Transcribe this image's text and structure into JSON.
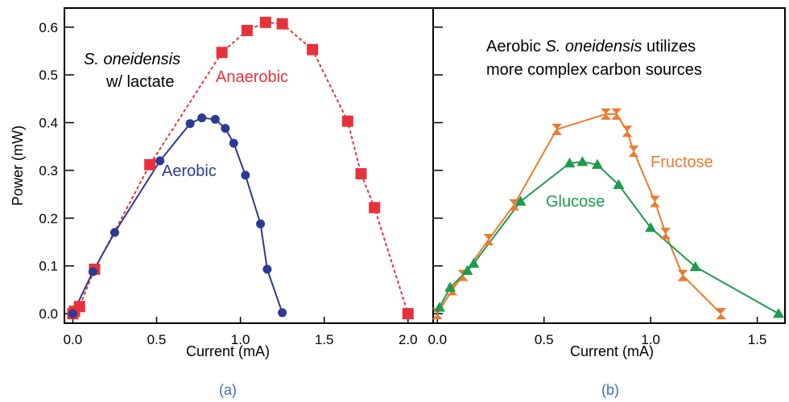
{
  "colors": {
    "anaerobic": "#e8323a",
    "aerobic": "#2c3a92",
    "fructose": "#ec7a2e",
    "glucose": "#1e9a4c",
    "caption": "#3a6fb0"
  },
  "chart_data": [
    {
      "type": "line",
      "caption": "(a)",
      "xlabel": "Current (mA)",
      "ylabel": "Power (mW)",
      "xlim": [
        -0.05,
        2.15
      ],
      "ylim": [
        -0.02,
        0.64
      ],
      "xticks": [
        0.0,
        0.5,
        1.0,
        1.5,
        2.0
      ],
      "xtick_labels": [
        "0.0",
        "0.5",
        "1.0",
        "1.5",
        "2.0"
      ],
      "yticks": [
        0.0,
        0.1,
        0.2,
        0.3,
        0.4,
        0.5,
        0.6
      ],
      "ytick_labels": [
        "0.0",
        "0.1",
        "0.2",
        "0.3",
        "0.4",
        "0.5",
        "0.6"
      ],
      "note_line1_italic": "S. oneidensis",
      "note_line2": "w/ lactate",
      "series": [
        {
          "name": "Anaerobic",
          "marker": "square",
          "line": "dashed",
          "color": "#e8323a",
          "x": [
            0.0,
            0.01,
            0.04,
            0.13,
            0.46,
            0.89,
            1.04,
            1.15,
            1.25,
            1.43,
            1.64,
            1.72,
            1.8,
            2.0
          ],
          "y": [
            0.0,
            0.005,
            0.015,
            0.093,
            0.312,
            0.547,
            0.593,
            0.61,
            0.607,
            0.553,
            0.403,
            0.293,
            0.222,
            0.0
          ]
        },
        {
          "name": "Aerobic",
          "marker": "circle",
          "line": "solid",
          "color": "#2c3a92",
          "x": [
            0.0,
            0.12,
            0.25,
            0.52,
            0.7,
            0.77,
            0.85,
            0.91,
            0.96,
            1.03,
            1.12,
            1.16,
            1.25
          ],
          "y": [
            0.0,
            0.088,
            0.17,
            0.32,
            0.398,
            0.41,
            0.407,
            0.388,
            0.357,
            0.29,
            0.188,
            0.093,
            0.002
          ]
        }
      ]
    },
    {
      "type": "line",
      "caption": "(b)",
      "xlabel": "Current (mA)",
      "ylabel": "",
      "xlim": [
        -0.02,
        1.63
      ],
      "ylim": [
        -0.02,
        0.64
      ],
      "xticks": [
        0.0,
        0.5,
        1.0,
        1.5
      ],
      "xtick_labels": [
        "0.0",
        "0.5",
        "1.0",
        "1.5"
      ],
      "yticks": [
        0.0,
        0.1,
        0.2,
        0.3,
        0.4,
        0.5,
        0.6
      ],
      "ytick_labels": [],
      "note_line1_pre": "Aerobic ",
      "note_line1_italic": "S. oneidensis",
      "note_line1_post": " utilizes",
      "note_line2": "more complex carbon sources",
      "series": [
        {
          "name": "Fructose",
          "marker": "hourglass",
          "line": "solid",
          "color": "#ec7a2e",
          "x": [
            0.0,
            0.07,
            0.12,
            0.24,
            0.36,
            0.56,
            0.79,
            0.84,
            0.89,
            0.92,
            1.02,
            1.07,
            1.15,
            1.33
          ],
          "y": [
            0.0,
            0.05,
            0.08,
            0.155,
            0.228,
            0.386,
            0.418,
            0.418,
            0.382,
            0.34,
            0.235,
            0.168,
            0.08,
            0.0
          ]
        },
        {
          "name": "Glucose",
          "marker": "triangle",
          "line": "solid",
          "color": "#1e9a4c",
          "x": [
            0.01,
            0.06,
            0.14,
            0.17,
            0.39,
            0.62,
            0.68,
            0.75,
            0.85,
            1.0,
            1.21,
            1.6
          ],
          "y": [
            0.013,
            0.055,
            0.09,
            0.105,
            0.235,
            0.315,
            0.318,
            0.312,
            0.27,
            0.18,
            0.098,
            0.0
          ]
        }
      ]
    }
  ],
  "series_labels": {
    "anaerobic": "Anaerobic",
    "aerobic": "Aerobic",
    "fructose": "Fructose",
    "glucose": "Glucose"
  }
}
